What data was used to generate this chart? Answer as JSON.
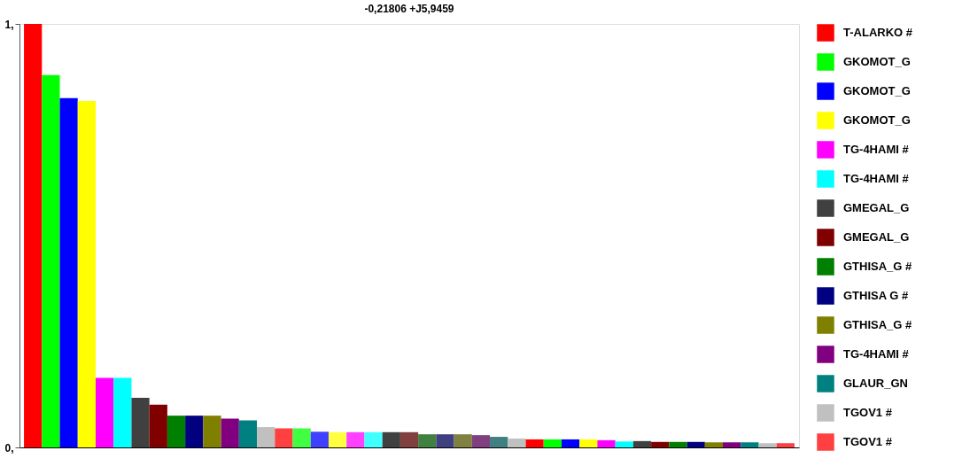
{
  "chart_data": {
    "type": "bar",
    "title": "-0,21806     +J5,9459",
    "categories": [
      null,
      null,
      null,
      null,
      null,
      null,
      null,
      null,
      null,
      null,
      null,
      null,
      null,
      null,
      null,
      null,
      null,
      null,
      null,
      null,
      null,
      null,
      null,
      null,
      null,
      null,
      null,
      null,
      null,
      null,
      null,
      null,
      null,
      null,
      null,
      null,
      null,
      null,
      null,
      null,
      null,
      null,
      null
    ],
    "series": [
      {
        "name": "T-ALARKO #",
        "color": "#ff0000",
        "values": [
          1,
          null,
          null,
          null,
          null,
          null,
          null,
          null,
          null,
          null,
          null,
          null,
          null,
          null,
          null,
          null,
          null,
          null,
          null,
          null,
          null,
          null,
          null,
          null,
          null,
          null,
          null,
          null,
          null,
          null,
          null,
          null,
          null,
          null,
          null,
          null,
          null,
          null,
          null,
          null,
          null,
          null,
          null
        ]
      },
      {
        "name": "GKOMOT_G",
        "color": "#00ff00",
        "values": [
          null,
          0.879,
          null,
          null,
          null,
          null,
          null,
          null,
          null,
          null,
          null,
          null,
          null,
          null,
          null,
          null,
          null,
          null,
          null,
          null,
          null,
          null,
          null,
          null,
          null,
          null,
          null,
          null,
          null,
          null,
          null,
          null,
          null,
          null,
          null,
          null,
          null,
          null,
          null,
          null,
          null,
          null,
          null
        ]
      },
      {
        "name": "GKOMOT_G",
        "color": "#0000ff",
        "values": [
          null,
          null,
          0.825,
          null,
          null,
          null,
          null,
          null,
          null,
          null,
          null,
          null,
          null,
          null,
          null,
          null,
          null,
          null,
          null,
          null,
          null,
          null,
          null,
          null,
          null,
          null,
          null,
          null,
          null,
          null,
          null,
          null,
          null,
          null,
          null,
          null,
          null,
          null,
          null,
          null,
          null,
          null,
          null
        ]
      },
      {
        "name": "GKOMOT_G",
        "color": "#ffff00",
        "values": [
          null,
          null,
          null,
          0.818,
          null,
          null,
          null,
          null,
          null,
          null,
          null,
          null,
          null,
          null,
          null,
          null,
          null,
          null,
          null,
          null,
          null,
          null,
          null,
          null,
          null,
          null,
          null,
          null,
          null,
          null,
          null,
          null,
          null,
          null,
          null,
          null,
          null,
          null,
          null,
          null,
          null,
          null,
          null
        ]
      },
      {
        "name": "TG-4HAMI #",
        "color": "#ff00ff",
        "values": [
          null,
          null,
          null,
          null,
          0.164,
          null,
          null,
          null,
          null,
          null,
          null,
          null,
          null,
          null,
          null,
          null,
          null,
          null,
          null,
          null,
          null,
          null,
          null,
          null,
          null,
          null,
          null,
          null,
          null,
          null,
          null,
          null,
          null,
          null,
          null,
          null,
          null,
          null,
          null,
          null,
          null,
          null,
          null
        ]
      },
      {
        "name": "TG-4HAMI #",
        "color": "#00ffff",
        "values": [
          null,
          null,
          null,
          null,
          null,
          0.164,
          null,
          null,
          null,
          null,
          null,
          null,
          null,
          null,
          null,
          null,
          null,
          null,
          null,
          null,
          null,
          null,
          null,
          null,
          null,
          null,
          null,
          null,
          null,
          null,
          null,
          null,
          null,
          null,
          null,
          null,
          null,
          null,
          null,
          null,
          null,
          null,
          null
        ]
      },
      {
        "name": "GMEGAL_G",
        "color": "#404040",
        "values": [
          null,
          null,
          null,
          null,
          null,
          null,
          0.117,
          null,
          null,
          null,
          null,
          null,
          null,
          null,
          null,
          null,
          null,
          null,
          null,
          null,
          null,
          null,
          null,
          null,
          null,
          null,
          null,
          null,
          null,
          null,
          null,
          null,
          null,
          null,
          null,
          null,
          null,
          null,
          null,
          null,
          null,
          null,
          null
        ]
      },
      {
        "name": "GMEGAL_G",
        "color": "#800000",
        "values": [
          null,
          null,
          null,
          null,
          null,
          null,
          null,
          0.101,
          null,
          null,
          null,
          null,
          null,
          null,
          null,
          null,
          null,
          null,
          null,
          null,
          null,
          null,
          null,
          null,
          null,
          null,
          null,
          null,
          null,
          null,
          null,
          null,
          null,
          null,
          null,
          null,
          null,
          null,
          null,
          null,
          null,
          null,
          null
        ]
      },
      {
        "name": "GTHISA_G #",
        "color": "#008000",
        "values": [
          null,
          null,
          null,
          null,
          null,
          null,
          null,
          null,
          0.075,
          null,
          null,
          null,
          null,
          null,
          null,
          null,
          null,
          null,
          null,
          null,
          null,
          null,
          null,
          null,
          null,
          null,
          null,
          null,
          null,
          null,
          null,
          null,
          null,
          null,
          null,
          null,
          null,
          null,
          null,
          null,
          null,
          null,
          null
        ]
      },
      {
        "name": "GTHISA G #",
        "color": "#000080",
        "values": [
          null,
          null,
          null,
          null,
          null,
          null,
          null,
          null,
          null,
          0.075,
          null,
          null,
          null,
          null,
          null,
          null,
          null,
          null,
          null,
          null,
          null,
          null,
          null,
          null,
          null,
          null,
          null,
          null,
          null,
          null,
          null,
          null,
          null,
          null,
          null,
          null,
          null,
          null,
          null,
          null,
          null,
          null,
          null
        ]
      },
      {
        "name": "GTHISA_G #",
        "color": "#808000",
        "values": [
          null,
          null,
          null,
          null,
          null,
          null,
          null,
          null,
          null,
          null,
          0.075,
          null,
          null,
          null,
          null,
          null,
          null,
          null,
          null,
          null,
          null,
          null,
          null,
          null,
          null,
          null,
          null,
          null,
          null,
          null,
          null,
          null,
          null,
          null,
          null,
          null,
          null,
          null,
          null,
          null,
          null,
          null,
          null
        ]
      },
      {
        "name": "TG-4HAMI #",
        "color": "#800080",
        "values": [
          null,
          null,
          null,
          null,
          null,
          null,
          null,
          null,
          null,
          null,
          null,
          0.068,
          null,
          null,
          null,
          null,
          null,
          null,
          null,
          null,
          null,
          null,
          null,
          null,
          null,
          null,
          null,
          null,
          null,
          null,
          null,
          null,
          null,
          null,
          null,
          null,
          null,
          null,
          null,
          null,
          null,
          null,
          null
        ]
      },
      {
        "name": "GLAUR_GN",
        "color": "#008080",
        "values": [
          null,
          null,
          null,
          null,
          null,
          null,
          null,
          null,
          null,
          null,
          null,
          null,
          0.064,
          null,
          null,
          null,
          null,
          null,
          null,
          null,
          null,
          null,
          null,
          null,
          null,
          null,
          null,
          null,
          null,
          null,
          null,
          null,
          null,
          null,
          null,
          null,
          null,
          null,
          null,
          null,
          null,
          null,
          null
        ]
      },
      {
        "name": "TGOV1 #",
        "color": "#c0c0c0",
        "values": [
          null,
          null,
          null,
          null,
          null,
          null,
          null,
          null,
          null,
          null,
          null,
          null,
          null,
          0.048,
          null,
          null,
          null,
          null,
          null,
          null,
          null,
          null,
          null,
          null,
          null,
          null,
          null,
          null,
          null,
          null,
          null,
          null,
          null,
          null,
          null,
          null,
          null,
          null,
          null,
          null,
          null,
          null,
          null
        ]
      },
      {
        "name": "TGOV1 #",
        "color": "#ff4040",
        "values": [
          null,
          null,
          null,
          null,
          null,
          null,
          null,
          null,
          null,
          null,
          null,
          null,
          null,
          null,
          0.045,
          null,
          null,
          null,
          null,
          null,
          null,
          null,
          null,
          null,
          null,
          null,
          null,
          null,
          null,
          null,
          null,
          null,
          null,
          null,
          null,
          null,
          null,
          null,
          null,
          null,
          null,
          null,
          null
        ]
      },
      {
        "colors": [
          null,
          null,
          null,
          null,
          null,
          null,
          null,
          null,
          null,
          null,
          null,
          null,
          null,
          null,
          null,
          "#40ff40",
          "#4040ff",
          "#ffff40",
          "#ff40ff",
          "#40ffff",
          "#404040",
          "#804040",
          "#408040",
          "#404080",
          "#808040",
          "#804080",
          "#408080",
          "#c0c0c0",
          "#ff0000",
          "#00ff00",
          "#0000ff",
          "#ffff00",
          "#ff00ff",
          "#00ffff",
          "#404040",
          "#800000",
          "#008000",
          "#000080",
          "#808000",
          "#800080",
          "#008080",
          "#c0c0c0",
          "#ff4040"
        ],
        "values": [
          null,
          null,
          null,
          null,
          null,
          null,
          null,
          null,
          null,
          null,
          null,
          null,
          null,
          null,
          null,
          0.045,
          0.037,
          0.036,
          0.036,
          0.036,
          0.036,
          0.036,
          0.031,
          0.031,
          0.031,
          0.029,
          0.025,
          0.021,
          0.019,
          0.019,
          0.019,
          0.019,
          0.017,
          0.014,
          0.015,
          0.013,
          0.013,
          0.013,
          0.012,
          0.012,
          0.012,
          0.01,
          0.01
        ]
      }
    ],
    "legend": "right",
    "ylim": [
      0,
      1
    ],
    "yticks": [
      {
        "value": 1,
        "label": "1,"
      },
      {
        "value": 0,
        "label": "0,"
      }
    ],
    "tick_labels": "y",
    "grid": false
  }
}
